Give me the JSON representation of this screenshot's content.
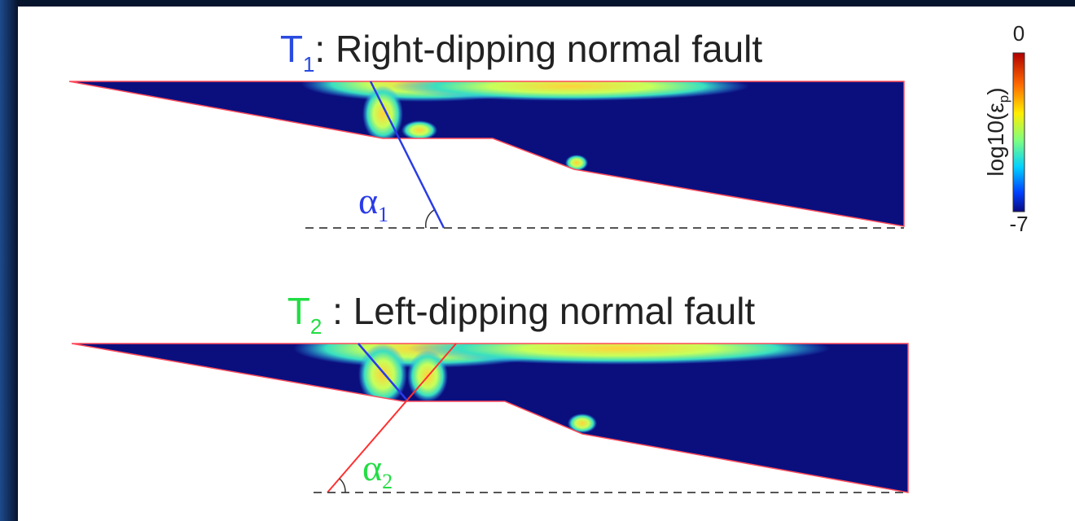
{
  "panels": [
    {
      "title": {
        "symbol": "T",
        "subscript": "1",
        "text": ": Right-dipping normal fault"
      },
      "angle": {
        "symbol": "α",
        "subscript": "1"
      }
    },
    {
      "title": {
        "symbol": "T",
        "subscript": "2",
        "text": " : Left-dipping normal fault"
      },
      "angle": {
        "symbol": "α",
        "subscript": "2"
      }
    }
  ],
  "colorbar": {
    "label": {
      "text": "log10(ε",
      "subscript": "p",
      "close": ")"
    },
    "max_label": "0",
    "min_label": "-7"
  }
}
